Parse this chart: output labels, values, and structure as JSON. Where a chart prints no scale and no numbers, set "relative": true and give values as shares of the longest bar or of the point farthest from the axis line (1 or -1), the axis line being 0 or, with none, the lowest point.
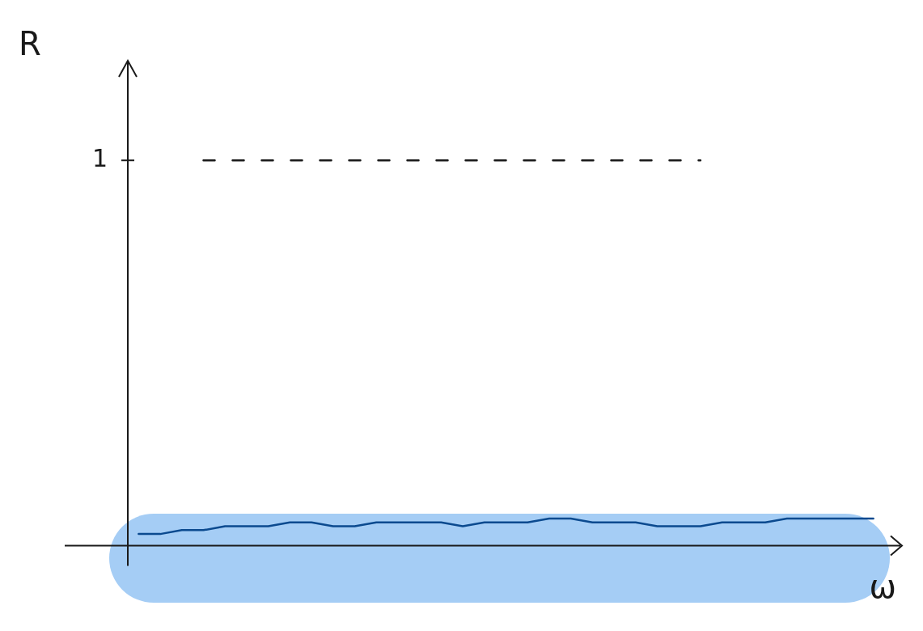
{
  "chart_data": {
    "type": "line",
    "xlabel": "ω",
    "ylabel": "R",
    "relative": true,
    "categories": [
      null,
      null,
      null,
      null,
      null,
      null,
      null,
      null,
      null,
      null,
      null,
      null,
      null,
      null,
      null,
      null,
      null,
      null,
      null,
      null,
      null,
      null,
      null,
      null,
      null,
      null,
      null,
      null,
      null,
      null,
      null,
      null,
      null,
      null,
      null
    ],
    "series": [
      {
        "color": "#0b4a8f",
        "values": [
          0.03,
          0.03,
          0.04,
          0.04,
          0.05,
          0.05,
          0.05,
          0.06,
          0.06,
          0.05,
          0.05,
          0.06,
          0.06,
          0.06,
          0.06,
          0.05,
          0.06,
          0.06,
          0.06,
          0.07,
          0.07,
          0.06,
          0.06,
          0.06,
          0.05,
          0.05,
          0.05,
          0.06,
          0.06,
          0.06,
          0.07,
          0.07,
          0.07,
          0.07,
          0.07
        ]
      },
      {
        "color": "#1a1a1a",
        "line_style": "dashed",
        "values": [
          null,
          null,
          null,
          1,
          1,
          1,
          1,
          1,
          1,
          1,
          1,
          1,
          1,
          1,
          1,
          1,
          1,
          1,
          1,
          1,
          1,
          1,
          1,
          1,
          1,
          1,
          1,
          null,
          null,
          null,
          null,
          null,
          null,
          null,
          null
        ]
      }
    ],
    "annotations": [
      "1"
    ],
    "grid": false,
    "legend": false,
    "marker": "none",
    "line_style": "solid"
  }
}
